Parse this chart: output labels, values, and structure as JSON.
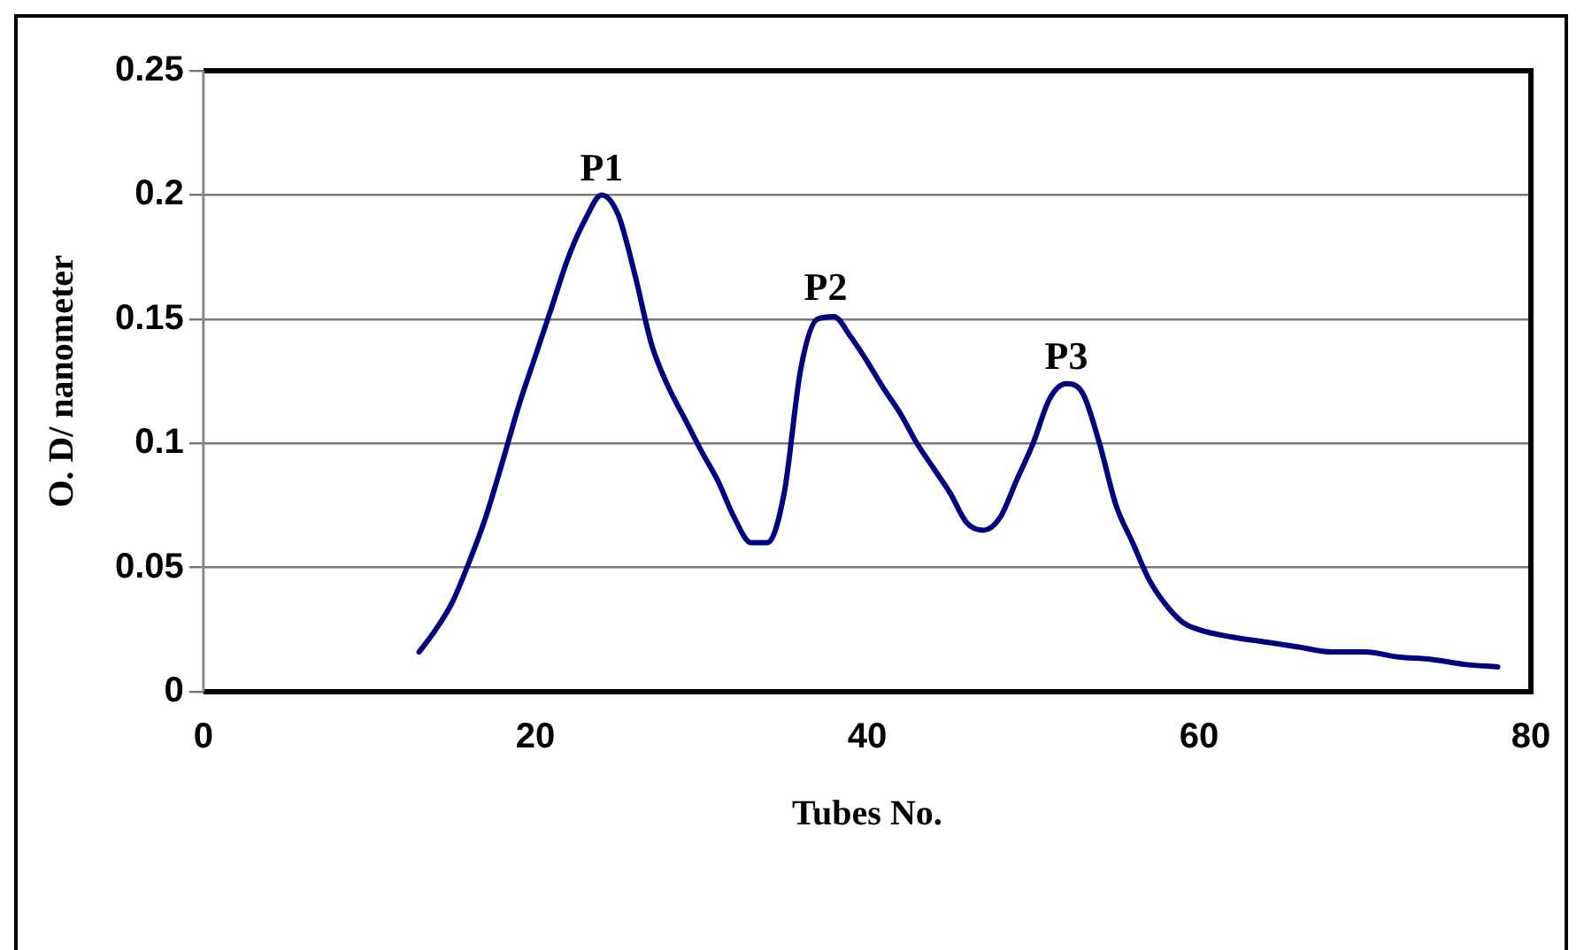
{
  "chart_data": {
    "type": "line",
    "xlabel": "Tubes No.",
    "ylabel": "O. D/ nanometer",
    "x": [
      13,
      14,
      15,
      16,
      17,
      18,
      19,
      20,
      21,
      22,
      23,
      24,
      25,
      26,
      27,
      28,
      29,
      30,
      31,
      32,
      33,
      34,
      35,
      36,
      37,
      38,
      39,
      40,
      41,
      42,
      43,
      44,
      45,
      46,
      47,
      48,
      49,
      50,
      51,
      52,
      53,
      54,
      55,
      56,
      57,
      58,
      59,
      60,
      62,
      64,
      66,
      68,
      70,
      72,
      74,
      76,
      78
    ],
    "series": [
      {
        "color": "#000080",
        "values": [
          0.016,
          0.025,
          0.036,
          0.052,
          0.07,
          0.092,
          0.115,
          0.135,
          0.155,
          0.175,
          0.19,
          0.2,
          0.192,
          0.168,
          0.14,
          0.123,
          0.11,
          0.097,
          0.085,
          0.07,
          0.06,
          0.06,
          0.08,
          0.13,
          0.15,
          0.151,
          0.143,
          0.133,
          0.122,
          0.112,
          0.1,
          0.09,
          0.08,
          0.068,
          0.065,
          0.07,
          0.085,
          0.1,
          0.118,
          0.124,
          0.12,
          0.1,
          0.075,
          0.06,
          0.045,
          0.035,
          0.028,
          0.025,
          0.022,
          0.02,
          0.018,
          0.016,
          0.016,
          0.014,
          0.013,
          0.011,
          0.01
        ]
      }
    ],
    "xlim": [
      0,
      80
    ],
    "xticks": [
      0,
      20,
      40,
      60,
      80
    ],
    "ylim": [
      0,
      0.25
    ],
    "yticks": [
      0,
      0.05,
      0.1,
      0.15,
      0.2,
      0.25
    ],
    "grid": "y",
    "legend": false,
    "marker": "none",
    "line_style": "solid",
    "annotations": [
      {
        "text": "P1",
        "x": 24,
        "y": 0.2
      },
      {
        "text": "P2",
        "x": 37.5,
        "y": 0.152
      },
      {
        "text": "P3",
        "x": 52,
        "y": 0.124
      }
    ]
  }
}
